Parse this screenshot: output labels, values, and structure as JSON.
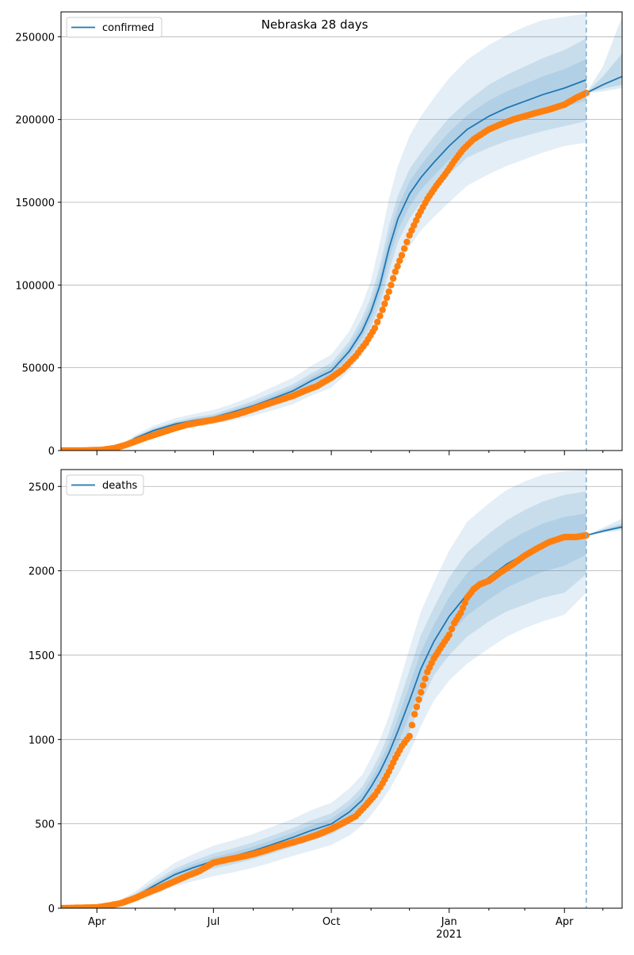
{
  "figure_title": "Nebraska 28 days",
  "colors": {
    "model": "#1f77b4",
    "observed": "#ff7f0e",
    "band": "#1f77b4",
    "grid": "#b0b0b0",
    "forecast_line": "#7fadd1"
  },
  "x_axis": {
    "ticks": [
      {
        "label": "Apr",
        "date": "2020-04-01"
      },
      {
        "label": "Jul",
        "date": "2020-07-01"
      },
      {
        "label": "Oct",
        "date": "2020-10-01"
      },
      {
        "label": "Jan",
        "date": "2021-01-01"
      },
      {
        "label": "Apr",
        "date": "2021-04-01"
      }
    ],
    "year_label": "2021",
    "range": [
      "2020-03-04",
      "2021-05-16"
    ],
    "forecast_date": "2021-04-18"
  },
  "chart_data": [
    {
      "type": "line",
      "title": "Nebraska 28 days",
      "legend": {
        "label": "confirmed",
        "placement": "top-left"
      },
      "ylim": [
        0,
        265000
      ],
      "yticks": [
        0,
        50000,
        100000,
        150000,
        200000,
        250000
      ],
      "grid": "y",
      "model": {
        "x": [
          "2020-03-04",
          "2020-04-01",
          "2020-04-20",
          "2020-05-01",
          "2020-05-15",
          "2020-06-01",
          "2020-06-15",
          "2020-07-01",
          "2020-07-15",
          "2020-08-01",
          "2020-08-15",
          "2020-09-01",
          "2020-09-15",
          "2020-10-01",
          "2020-10-15",
          "2020-10-25",
          "2020-11-01",
          "2020-11-08",
          "2020-11-15",
          "2020-11-22",
          "2020-12-01",
          "2020-12-10",
          "2020-12-20",
          "2021-01-01",
          "2021-01-15",
          "2021-02-01",
          "2021-02-15",
          "2021-03-01",
          "2021-03-15",
          "2021-04-01",
          "2021-04-18"
        ],
        "y": [
          0,
          300,
          2500,
          7500,
          12000,
          16000,
          18000,
          20000,
          23000,
          27000,
          31000,
          36000,
          42000,
          48000,
          60000,
          72000,
          84000,
          100000,
          122000,
          140000,
          155000,
          165000,
          174000,
          184000,
          194000,
          202000,
          207000,
          211000,
          215000,
          219000,
          224000
        ],
        "band_inner": [
          [
            0,
            0,
            0
          ],
          [
            0,
            300,
            300
          ],
          [
            0,
            2000,
            3000
          ],
          [
            0,
            6500,
            8500
          ],
          [
            0,
            10500,
            13500
          ],
          [
            0,
            14500,
            17500
          ],
          [
            0,
            16000,
            20000
          ],
          [
            0,
            18000,
            22000
          ],
          [
            0,
            20500,
            25500
          ],
          [
            0,
            24000,
            30000
          ],
          [
            0,
            27500,
            34500
          ],
          [
            0,
            32000,
            40000
          ],
          [
            0,
            37500,
            46500
          ],
          [
            0,
            43000,
            53000
          ],
          [
            0,
            54000,
            66000
          ],
          [
            0,
            65000,
            80000
          ],
          [
            0,
            75000,
            93000
          ],
          [
            0,
            88000,
            112000
          ],
          [
            0,
            108000,
            136000
          ],
          [
            0,
            126000,
            154000
          ],
          [
            0,
            140000,
            170000
          ],
          [
            0,
            150000,
            180000
          ],
          [
            0,
            158000,
            190000
          ],
          [
            0,
            167000,
            201000
          ],
          [
            0,
            177000,
            211000
          ],
          [
            0,
            183000,
            221000
          ],
          [
            0,
            187000,
            227000
          ],
          [
            0,
            190000,
            232000
          ],
          [
            0,
            193000,
            237000
          ],
          [
            0,
            196000,
            242000
          ],
          [
            0,
            199000,
            249000
          ]
        ],
        "band_outer": [
          [
            0,
            0,
            0
          ],
          [
            0,
            200,
            400
          ],
          [
            0,
            1500,
            3500
          ],
          [
            0,
            5500,
            9500
          ],
          [
            0,
            9000,
            15000
          ],
          [
            0,
            12500,
            19500
          ],
          [
            0,
            14000,
            22000
          ],
          [
            0,
            16000,
            24500
          ],
          [
            0,
            18000,
            28000
          ],
          [
            0,
            21000,
            33000
          ],
          [
            0,
            24000,
            38000
          ],
          [
            0,
            28000,
            44000
          ],
          [
            0,
            33000,
            51000
          ],
          [
            0,
            38000,
            58000
          ],
          [
            0,
            48000,
            72000
          ],
          [
            0,
            58000,
            88000
          ],
          [
            0,
            67000,
            103000
          ],
          [
            0,
            78000,
            126000
          ],
          [
            0,
            95000,
            152000
          ],
          [
            0,
            110000,
            172000
          ],
          [
            0,
            123000,
            190000
          ],
          [
            0,
            133000,
            202000
          ],
          [
            0,
            141000,
            213000
          ],
          [
            0,
            150000,
            225000
          ],
          [
            0,
            160000,
            236000
          ],
          [
            0,
            167000,
            245000
          ],
          [
            0,
            172000,
            251000
          ],
          [
            0,
            176000,
            256000
          ],
          [
            0,
            180000,
            260000
          ],
          [
            0,
            184000,
            262000
          ],
          [
            0,
            186000,
            264000
          ]
        ],
        "forecast": {
          "x": [
            "2021-04-18",
            "2021-05-01",
            "2021-05-16"
          ],
          "y": [
            216000,
            221000,
            226000
          ],
          "band_outer_low": [
            216000,
            217000,
            219000
          ],
          "band_outer_high": [
            216000,
            232000,
            262000
          ],
          "band_inner_low": [
            216000,
            218500,
            221000
          ],
          "band_inner_high": [
            216000,
            226000,
            240000
          ]
        }
      },
      "observed": {
        "x": [
          "2020-03-04",
          "2020-03-20",
          "2020-04-05",
          "2020-04-15",
          "2020-04-22",
          "2020-05-01",
          "2020-05-10",
          "2020-05-20",
          "2020-06-01",
          "2020-06-10",
          "2020-06-20",
          "2020-07-01",
          "2020-07-10",
          "2020-07-20",
          "2020-08-01",
          "2020-08-10",
          "2020-08-20",
          "2020-09-01",
          "2020-09-10",
          "2020-09-20",
          "2020-10-01",
          "2020-10-10",
          "2020-10-20",
          "2020-10-28",
          "2020-11-04",
          "2020-11-10",
          "2020-11-15",
          "2020-11-20",
          "2020-11-25",
          "2020-12-01",
          "2020-12-08",
          "2020-12-15",
          "2020-12-22",
          "2020-12-29",
          "2021-01-05",
          "2021-01-12",
          "2021-01-20",
          "2021-02-01",
          "2021-02-10",
          "2021-02-20",
          "2021-03-01",
          "2021-03-10",
          "2021-03-20",
          "2021-04-01",
          "2021-04-10",
          "2021-04-18"
        ],
        "y": [
          0,
          20,
          400,
          1500,
          3000,
          5500,
          8000,
          10500,
          13500,
          15500,
          17000,
          18500,
          20000,
          22000,
          25000,
          27500,
          30000,
          33000,
          36000,
          39000,
          44000,
          49000,
          57000,
          65000,
          74000,
          85000,
          96000,
          108000,
          118000,
          130000,
          142000,
          152000,
          160000,
          167000,
          175000,
          182000,
          188000,
          194000,
          197000,
          200000,
          202000,
          204000,
          206000,
          209000,
          213000,
          216000
        ]
      }
    },
    {
      "type": "line",
      "title": "",
      "legend": {
        "label": "deaths",
        "placement": "top-left"
      },
      "ylim": [
        0,
        2600
      ],
      "yticks": [
        0,
        500,
        1000,
        1500,
        2000,
        2500
      ],
      "grid": "y",
      "model": {
        "x": [
          "2020-03-04",
          "2020-04-01",
          "2020-04-15",
          "2020-05-01",
          "2020-05-15",
          "2020-06-01",
          "2020-06-15",
          "2020-07-01",
          "2020-07-15",
          "2020-08-01",
          "2020-08-15",
          "2020-09-01",
          "2020-09-15",
          "2020-10-01",
          "2020-10-15",
          "2020-10-25",
          "2020-11-01",
          "2020-11-08",
          "2020-11-15",
          "2020-11-22",
          "2020-12-01",
          "2020-12-10",
          "2020-12-20",
          "2021-01-01",
          "2021-01-15",
          "2021-02-01",
          "2021-02-15",
          "2021-03-01",
          "2021-03-15",
          "2021-04-01",
          "2021-04-18"
        ],
        "y": [
          0,
          5,
          20,
          70,
          130,
          200,
          240,
          280,
          305,
          340,
          375,
          420,
          460,
          500,
          570,
          640,
          720,
          810,
          920,
          1050,
          1230,
          1420,
          1580,
          1730,
          1860,
          1960,
          2040,
          2100,
          2150,
          2190,
          2210
        ],
        "band_inner": [
          [
            0,
            0,
            0
          ],
          [
            0,
            4,
            6
          ],
          [
            0,
            15,
            25
          ],
          [
            0,
            55,
            85
          ],
          [
            0,
            105,
            155
          ],
          [
            0,
            165,
            235
          ],
          [
            0,
            200,
            280
          ],
          [
            0,
            235,
            325
          ],
          [
            0,
            258,
            352
          ],
          [
            0,
            290,
            390
          ],
          [
            0,
            322,
            428
          ],
          [
            0,
            365,
            475
          ],
          [
            0,
            400,
            520
          ],
          [
            0,
            438,
            562
          ],
          [
            0,
            500,
            640
          ],
          [
            0,
            562,
            718
          ],
          [
            0,
            632,
            808
          ],
          [
            0,
            710,
            910
          ],
          [
            0,
            800,
            1040
          ],
          [
            0,
            900,
            1200
          ],
          [
            0,
            1050,
            1410
          ],
          [
            0,
            1220,
            1620
          ],
          [
            0,
            1380,
            1780
          ],
          [
            0,
            1500,
            1960
          ],
          [
            0,
            1610,
            2110
          ],
          [
            0,
            1700,
            2220
          ],
          [
            0,
            1760,
            2300
          ],
          [
            0,
            1800,
            2360
          ],
          [
            0,
            1840,
            2410
          ],
          [
            0,
            1870,
            2450
          ],
          [
            0,
            1980,
            2470
          ]
        ],
        "band_outer": [
          [
            0,
            0,
            0
          ],
          [
            0,
            3,
            8
          ],
          [
            0,
            10,
            30
          ],
          [
            0,
            40,
            100
          ],
          [
            0,
            80,
            180
          ],
          [
            0,
            130,
            270
          ],
          [
            0,
            160,
            320
          ],
          [
            0,
            190,
            370
          ],
          [
            0,
            210,
            400
          ],
          [
            0,
            240,
            440
          ],
          [
            0,
            270,
            480
          ],
          [
            0,
            310,
            530
          ],
          [
            0,
            340,
            580
          ],
          [
            0,
            375,
            625
          ],
          [
            0,
            430,
            710
          ],
          [
            0,
            490,
            790
          ],
          [
            0,
            550,
            890
          ],
          [
            0,
            620,
            1000
          ],
          [
            0,
            700,
            1140
          ],
          [
            0,
            790,
            1310
          ],
          [
            0,
            920,
            1540
          ],
          [
            0,
            1080,
            1760
          ],
          [
            0,
            1230,
            1930
          ],
          [
            0,
            1350,
            2120
          ],
          [
            0,
            1450,
            2290
          ],
          [
            0,
            1540,
            2400
          ],
          [
            0,
            1610,
            2480
          ],
          [
            0,
            1660,
            2530
          ],
          [
            0,
            1700,
            2570
          ],
          [
            0,
            1740,
            2590
          ],
          [
            0,
            1870,
            2600
          ]
        ],
        "forecast": {
          "x": [
            "2021-04-18",
            "2021-05-01",
            "2021-05-16"
          ],
          "y": [
            2210,
            2235,
            2260
          ],
          "band_outer_low": [
            2210,
            2225,
            2240
          ],
          "band_outer_high": [
            2210,
            2255,
            2310
          ],
          "band_inner_low": [
            2210,
            2230,
            2250
          ],
          "band_inner_high": [
            2210,
            2245,
            2280
          ]
        }
      },
      "observed": {
        "x": [
          "2020-03-04",
          "2020-04-01",
          "2020-04-10",
          "2020-04-20",
          "2020-05-01",
          "2020-05-10",
          "2020-05-20",
          "2020-06-01",
          "2020-06-10",
          "2020-06-20",
          "2020-07-01",
          "2020-07-10",
          "2020-07-20",
          "2020-08-01",
          "2020-08-10",
          "2020-08-20",
          "2020-09-01",
          "2020-09-10",
          "2020-09-20",
          "2020-10-01",
          "2020-10-10",
          "2020-10-20",
          "2020-10-28",
          "2020-11-04",
          "2020-11-10",
          "2020-11-15",
          "2020-11-20",
          "2020-11-25",
          "2020-12-01",
          "2020-12-05",
          "2020-12-10",
          "2020-12-15",
          "2020-12-20",
          "2020-12-25",
          "2021-01-01",
          "2021-01-05",
          "2021-01-10",
          "2021-01-15",
          "2021-01-20",
          "2021-01-25",
          "2021-02-01",
          "2021-02-10",
          "2021-02-20",
          "2021-03-01",
          "2021-03-10",
          "2021-03-20",
          "2021-04-01",
          "2021-04-10",
          "2021-04-18"
        ],
        "y": [
          0,
          5,
          15,
          30,
          60,
          90,
          120,
          160,
          190,
          220,
          270,
          285,
          300,
          320,
          340,
          365,
          390,
          410,
          435,
          470,
          505,
          545,
          610,
          670,
          740,
          810,
          890,
          960,
          1020,
          1150,
          1280,
          1400,
          1480,
          1540,
          1620,
          1690,
          1750,
          1840,
          1890,
          1920,
          1940,
          1990,
          2040,
          2090,
          2130,
          2170,
          2200,
          2200,
          2210
        ]
      }
    }
  ]
}
